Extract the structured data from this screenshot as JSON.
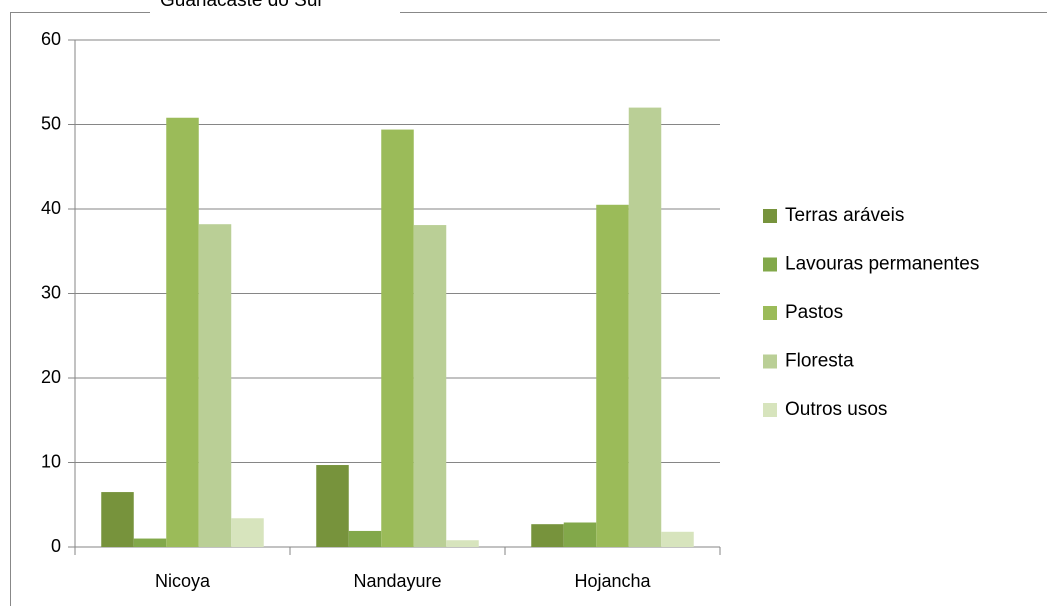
{
  "chart_data": {
    "type": "bar",
    "title": "Guanacaste do Sul",
    "categories": [
      "Nicoya",
      "Nandayure",
      "Hojancha"
    ],
    "series": [
      {
        "name": "Terras aráveis",
        "color": "#77933c",
        "values": [
          6.5,
          9.7,
          2.7
        ]
      },
      {
        "name": "Lavouras permanentes",
        "color": "#82a84a",
        "values": [
          1.0,
          1.9,
          2.9
        ]
      },
      {
        "name": "Pastos",
        "color": "#9bbb59",
        "values": [
          50.8,
          49.4,
          40.5
        ]
      },
      {
        "name": "Floresta",
        "color": "#bacf96",
        "values": [
          38.2,
          38.1,
          52.0
        ]
      },
      {
        "name": "Outros usos",
        "color": "#d7e4bd",
        "values": [
          3.4,
          0.8,
          1.8
        ]
      }
    ],
    "ylim": [
      0,
      60
    ],
    "yticks": [
      0,
      10,
      20,
      30,
      40,
      50,
      60
    ],
    "grid": true,
    "legend": "right"
  }
}
